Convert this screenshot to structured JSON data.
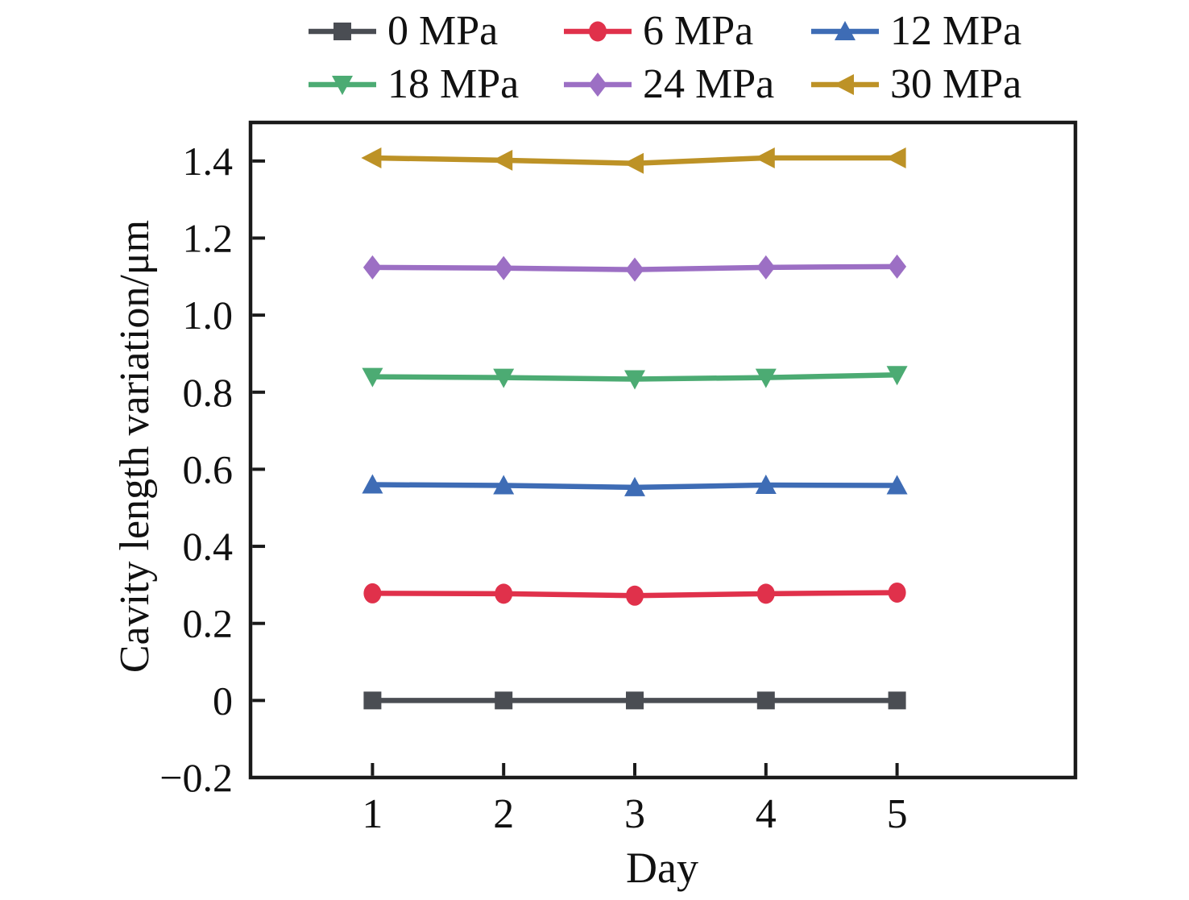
{
  "chart_data": {
    "type": "line",
    "title": "",
    "xlabel": "Day",
    "ylabel": "Cavity length variation/μm",
    "x": [
      1,
      2,
      3,
      4,
      5
    ],
    "xlim": [
      0.07,
      6.36
    ],
    "ylim": [
      -0.2,
      1.5
    ],
    "x_tick_values": [
      1,
      2,
      3,
      4,
      5
    ],
    "x_tick_labels": [
      "1",
      "2",
      "3",
      "4",
      "5"
    ],
    "y_tick_values": [
      -0.2,
      0,
      0.2,
      0.4,
      0.6,
      0.8,
      1.0,
      1.2,
      1.4
    ],
    "y_tick_labels": [
      "−0.2",
      "0",
      "0.2",
      "0.4",
      "0.6",
      "0.8",
      "1.0",
      "1.2",
      "1.4"
    ],
    "grid": false,
    "legend_position": "top-two-rows",
    "series": [
      {
        "name": "0 MPa",
        "color": "#4a4d53",
        "marker": "square",
        "values": [
          0.0,
          0.0,
          0.0,
          0.0,
          0.0
        ]
      },
      {
        "name": "6 MPa",
        "color": "#e0314b",
        "marker": "circle",
        "values": [
          0.278,
          0.277,
          0.272,
          0.277,
          0.28
        ]
      },
      {
        "name": "12 MPa",
        "color": "#3e6cb5",
        "marker": "triangle-up",
        "values": [
          0.56,
          0.558,
          0.553,
          0.559,
          0.558
        ]
      },
      {
        "name": "18 MPa",
        "color": "#4cab73",
        "marker": "triangle-down",
        "values": [
          0.84,
          0.838,
          0.834,
          0.838,
          0.845
        ]
      },
      {
        "name": "24 MPa",
        "color": "#9c6fc4",
        "marker": "diamond",
        "values": [
          1.124,
          1.122,
          1.118,
          1.124,
          1.126
        ]
      },
      {
        "name": "30 MPa",
        "color": "#bd9226",
        "marker": "triangle-left",
        "values": [
          1.408,
          1.402,
          1.394,
          1.408,
          1.408
        ]
      }
    ],
    "frame_color": "#1a1a1a",
    "text_color": "#111111"
  }
}
